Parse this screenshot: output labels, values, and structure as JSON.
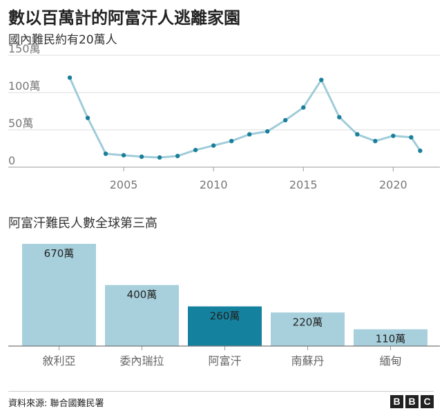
{
  "title": "數以百萬計的阿富汗人逃離家園",
  "source": "資料來源: 聯合國難民署",
  "logo": [
    "B",
    "B",
    "C"
  ],
  "chart_data": [
    {
      "type": "line",
      "title": "國內難民約有20萬人",
      "x": [
        2002,
        2003,
        2004,
        2005,
        2006,
        2007,
        2008,
        2009,
        2010,
        2011,
        2012,
        2013,
        2014,
        2015,
        2016,
        2017,
        2018,
        2019,
        2020,
        2021,
        2021.5
      ],
      "y": [
        1200000,
        660000,
        180000,
        160000,
        140000,
        130000,
        150000,
        230000,
        290000,
        350000,
        440000,
        480000,
        630000,
        800000,
        1170000,
        670000,
        440000,
        350000,
        420000,
        400000,
        220000
      ],
      "xlim": [
        2000.5,
        2022.6
      ],
      "ylim": [
        0,
        1500000
      ],
      "yticks": [
        0,
        500000,
        1000000,
        1500000
      ],
      "ytick_labels": [
        "0",
        "50萬",
        "100萬",
        "150萬"
      ],
      "xticks": [
        2005,
        2010,
        2015,
        2020
      ],
      "xtick_labels": [
        "2005",
        "2010",
        "2015",
        "2020"
      ],
      "line_color": "#9fccd9",
      "point_color": "#1a7f9a",
      "grid": true
    },
    {
      "type": "bar",
      "title": "阿富汗難民人數全球第三高",
      "categories": [
        "敘利亞",
        "委內瑞拉",
        "阿富汗",
        "南蘇丹",
        "緬甸"
      ],
      "values": [
        6700000,
        4000000,
        2600000,
        2200000,
        1100000
      ],
      "value_labels": [
        "670萬",
        "400萬",
        "260萬",
        "220萬",
        "110萬"
      ],
      "highlight_index": 2,
      "bar_color": "#a7d0dc",
      "highlight_color": "#14829f",
      "ylim": [
        0,
        6700000
      ]
    }
  ]
}
